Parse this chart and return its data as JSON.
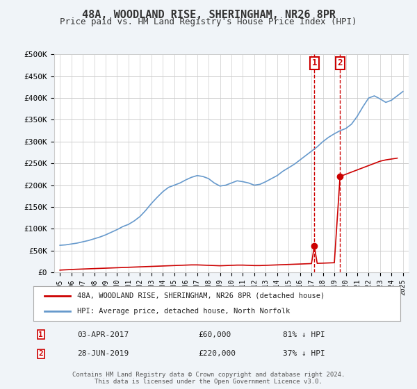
{
  "title": "48A, WOODLAND RISE, SHERINGHAM, NR26 8PR",
  "subtitle": "Price paid vs. HM Land Registry's House Price Index (HPI)",
  "footer": "Contains HM Land Registry data © Crown copyright and database right 2024.\nThis data is licensed under the Open Government Licence v3.0.",
  "ylim": [
    0,
    500000
  ],
  "yticks": [
    0,
    50000,
    100000,
    150000,
    200000,
    250000,
    300000,
    350000,
    400000,
    450000,
    500000
  ],
  "ytick_labels": [
    "£0",
    "£50K",
    "£100K",
    "£150K",
    "£200K",
    "£250K",
    "£300K",
    "£350K",
    "£400K",
    "£450K",
    "£500K"
  ],
  "xlim_start": 1995.0,
  "xlim_end": 2025.5,
  "hpi_color": "#6699cc",
  "price_color": "#cc0000",
  "background_color": "#f0f4f8",
  "plot_bg_color": "#ffffff",
  "legend_label_red": "48A, WOODLAND RISE, SHERINGHAM, NR26 8PR (detached house)",
  "legend_label_blue": "HPI: Average price, detached house, North Norfolk",
  "sale1_year": 2017.25,
  "sale1_price": 60000,
  "sale1_label": "1",
  "sale1_date": "03-APR-2017",
  "sale1_amount": "£60,000",
  "sale1_hpi": "81% ↓ HPI",
  "sale2_year": 2019.5,
  "sale2_price": 220000,
  "sale2_label": "2",
  "sale2_date": "28-JUN-2019",
  "sale2_amount": "£220,000",
  "sale2_hpi": "37% ↓ HPI",
  "hpi_years": [
    1995,
    1995.5,
    1996,
    1996.5,
    1997,
    1997.5,
    1998,
    1998.5,
    1999,
    1999.5,
    2000,
    2000.5,
    2001,
    2001.5,
    2002,
    2002.5,
    2003,
    2003.5,
    2004,
    2004.5,
    2005,
    2005.5,
    2006,
    2006.5,
    2007,
    2007.5,
    2008,
    2008.5,
    2009,
    2009.5,
    2010,
    2010.5,
    2011,
    2011.5,
    2012,
    2012.5,
    2013,
    2013.5,
    2014,
    2014.5,
    2015,
    2015.5,
    2016,
    2016.5,
    2017,
    2017.5,
    2018,
    2018.5,
    2019,
    2019.5,
    2020,
    2020.5,
    2021,
    2021.5,
    2022,
    2022.5,
    2023,
    2023.5,
    2024,
    2024.5,
    2025
  ],
  "hpi_values": [
    62000,
    63000,
    65000,
    67000,
    70000,
    73000,
    77000,
    81000,
    86000,
    92000,
    98000,
    105000,
    110000,
    118000,
    128000,
    142000,
    158000,
    172000,
    185000,
    195000,
    200000,
    205000,
    212000,
    218000,
    222000,
    220000,
    215000,
    205000,
    198000,
    200000,
    205000,
    210000,
    208000,
    205000,
    200000,
    202000,
    208000,
    215000,
    222000,
    232000,
    240000,
    248000,
    258000,
    268000,
    278000,
    288000,
    300000,
    310000,
    318000,
    325000,
    330000,
    340000,
    358000,
    380000,
    400000,
    405000,
    398000,
    390000,
    395000,
    405000,
    415000
  ],
  "price_paid_years": [
    1995,
    1995.3,
    1995.7,
    1996,
    1996.5,
    1997,
    1997.5,
    1998,
    1998.5,
    1999,
    1999.5,
    2000,
    2000.5,
    2001,
    2001.5,
    2002,
    2002.5,
    2003,
    2003.5,
    2004,
    2004.5,
    2005,
    2005.5,
    2006,
    2006.5,
    2007,
    2007.5,
    2008,
    2008.5,
    2009,
    2009.5,
    2010,
    2010.5,
    2011,
    2011.5,
    2012,
    2012.5,
    2013,
    2013.5,
    2014,
    2014.5,
    2015,
    2015.5,
    2016,
    2016.5,
    2017,
    2017.25,
    2017.5,
    2018,
    2018.5,
    2019,
    2019.5,
    2020,
    2020.5,
    2021,
    2021.5,
    2022,
    2022.5,
    2023,
    2023.5,
    2024,
    2024.5
  ],
  "price_paid_values": [
    5000,
    5500,
    6000,
    6500,
    7000,
    7500,
    8000,
    8500,
    9000,
    9500,
    10000,
    10500,
    11000,
    11500,
    12000,
    12500,
    13000,
    13500,
    14000,
    14500,
    15000,
    15500,
    16000,
    16500,
    17000,
    17000,
    16500,
    16000,
    15500,
    15000,
    15500,
    16000,
    16500,
    16500,
    16000,
    15500,
    15500,
    16000,
    16500,
    17000,
    17500,
    18000,
    18500,
    19000,
    19500,
    20000,
    60000,
    20500,
    21000,
    21500,
    22000,
    220000,
    225000,
    230000,
    235000,
    240000,
    245000,
    250000,
    255000,
    258000,
    260000,
    262000
  ]
}
